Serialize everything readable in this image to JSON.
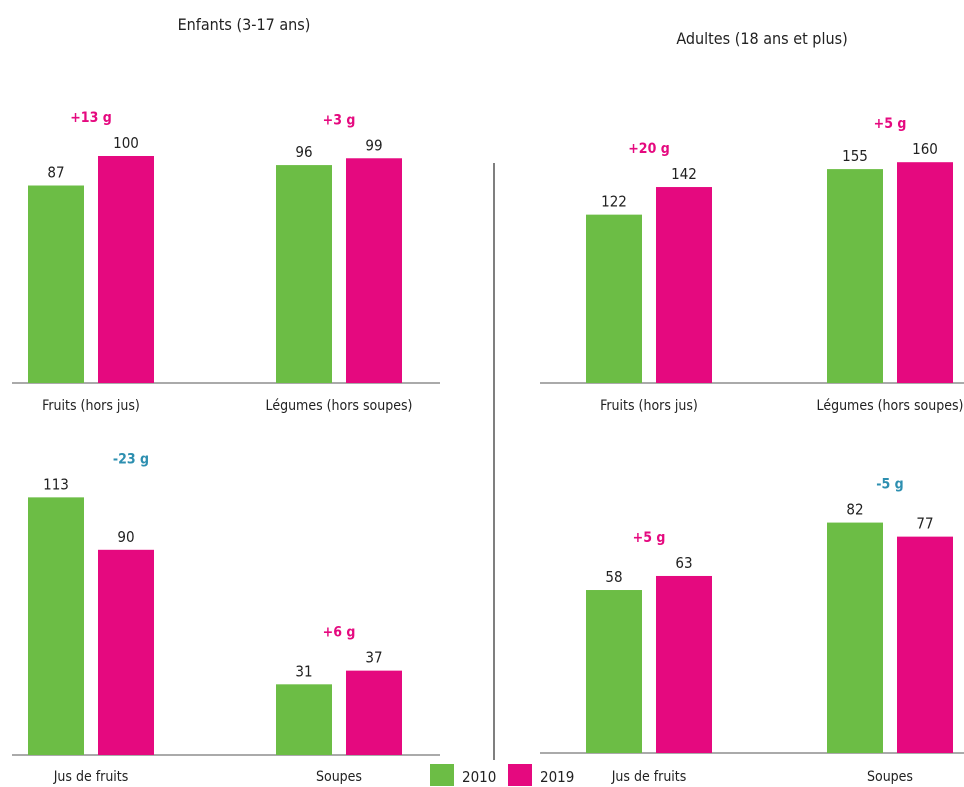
{
  "titles": {
    "children": "Enfants (3-17 ans)",
    "adults": "Adultes (18 ans et plus)"
  },
  "legend": {
    "items": [
      {
        "label": "2010",
        "color": "#6cbd45"
      },
      {
        "label": "2019",
        "color": "#e5097f"
      }
    ]
  },
  "colors": {
    "s2010": "#6cbd45",
    "s2019": "#e5097f",
    "delta_positive": "#e5097f",
    "delta_negative": "#2d8fb0",
    "axis": "#aaaaaa",
    "divider": "#555555"
  },
  "chart_data": [
    {
      "type": "bar",
      "group": "Enfants (3-17 ans)",
      "categories": [
        "Fruits (hors jus)",
        "Légumes (hors soupes)"
      ],
      "series": [
        {
          "name": "2010",
          "values": [
            87,
            96
          ]
        },
        {
          "name": "2019",
          "values": [
            100,
            99
          ]
        }
      ],
      "value_labels": [
        [
          "87",
          "100"
        ],
        [
          "96",
          "99"
        ]
      ],
      "annotations": [
        "+13 g",
        "+3 g"
      ],
      "annotation_sign": [
        "positive",
        "positive"
      ],
      "ylim": [
        0,
        120
      ]
    },
    {
      "type": "bar",
      "group": "Adultes (18 ans et plus)",
      "categories": [
        "Fruits (hors jus)",
        "Légumes (hors soupes)"
      ],
      "series": [
        {
          "name": "2010",
          "values": [
            122,
            155
          ]
        },
        {
          "name": "2019",
          "values": [
            142,
            160
          ]
        }
      ],
      "value_labels": [
        [
          "122",
          "142"
        ],
        [
          "155",
          "160"
        ]
      ],
      "annotations": [
        "+20 g",
        "+5 g"
      ],
      "annotation_sign": [
        "positive",
        "positive"
      ],
      "ylim": [
        0,
        173
      ]
    },
    {
      "type": "bar",
      "group": "Enfants (3-17 ans)",
      "categories": [
        "Jus de fruits",
        "Soupes"
      ],
      "series": [
        {
          "name": "2010",
          "values": [
            113,
            31
          ]
        },
        {
          "name": "2019",
          "values": [
            90,
            37
          ]
        }
      ],
      "value_labels": [
        [
          "113",
          "90"
        ],
        [
          "31",
          "37"
        ]
      ],
      "annotations": [
        "-23 g",
        "+6 g"
      ],
      "annotation_sign": [
        "negative",
        "positive"
      ],
      "ylim": [
        0,
        113
      ]
    },
    {
      "type": "bar",
      "group": "Adultes (18 ans et plus)",
      "categories": [
        "Jus de fruits",
        "Soupes"
      ],
      "series": [
        {
          "name": "2010",
          "values": [
            58,
            82
          ]
        },
        {
          "name": "2019",
          "values": [
            63,
            77
          ]
        }
      ],
      "value_labels": [
        [
          "58",
          "63"
        ],
        [
          "82",
          "77"
        ]
      ],
      "annotations": [
        "+5 g",
        "-5 g"
      ],
      "annotation_sign": [
        "positive",
        "negative"
      ],
      "ylim": [
        0,
        116
      ]
    }
  ]
}
